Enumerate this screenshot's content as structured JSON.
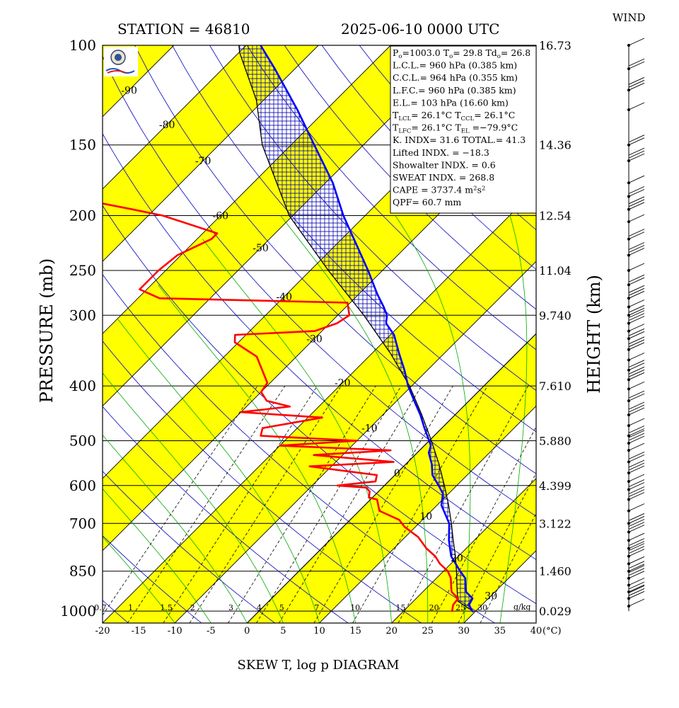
{
  "chart_data": {
    "type": "line",
    "title": "SKEW T, log p DIAGRAM",
    "station_label": "STATION = 46810",
    "datetime_label": "2025-06-10 0000 UTC",
    "ylabel": "PRESSURE (mb)",
    "y2label": "HEIGHT (km)",
    "wind_label": "WIND",
    "x_unit": "(°C)",
    "mixing_unit": "g/kg",
    "xlim": [
      -20,
      40
    ],
    "ylim": [
      1050,
      100
    ],
    "x_ticks": [
      "-20",
      "-15",
      "-10",
      "-5",
      "0",
      "5",
      "10",
      "15",
      "20",
      "25",
      "30",
      "35",
      "40"
    ],
    "pressure_ticks": [
      {
        "p": 100,
        "label": "100",
        "height": "16.73"
      },
      {
        "p": 150,
        "label": "150",
        "height": "14.36"
      },
      {
        "p": 200,
        "label": "200",
        "height": "12.54"
      },
      {
        "p": 250,
        "label": "250",
        "height": "11.04"
      },
      {
        "p": 300,
        "label": "300",
        "height": "9.740"
      },
      {
        "p": 400,
        "label": "400",
        "height": "7.610"
      },
      {
        "p": 500,
        "label": "500",
        "height": "5.880"
      },
      {
        "p": 600,
        "label": "600",
        "height": "4.399"
      },
      {
        "p": 700,
        "label": "700",
        "height": "3.122"
      },
      {
        "p": 850,
        "label": "850",
        "height": "1.460"
      },
      {
        "p": 1000,
        "label": "1000",
        "height": "0.029"
      }
    ],
    "isotherm_labels": [
      {
        "t": -90,
        "p": 120,
        "label": "-90"
      },
      {
        "t": -80,
        "p": 138,
        "label": "-80"
      },
      {
        "t": -70,
        "p": 160,
        "label": "-70"
      },
      {
        "t": -60,
        "p": 200,
        "label": "-60"
      },
      {
        "t": -50,
        "p": 228,
        "label": "-50"
      },
      {
        "t": -40,
        "p": 278,
        "label": "-40"
      },
      {
        "t": -30,
        "p": 330,
        "label": "-30"
      },
      {
        "t": -20,
        "p": 395,
        "label": "-20"
      },
      {
        "t": -10,
        "p": 475,
        "label": "-10"
      },
      {
        "t": 0,
        "p": 570,
        "label": "0"
      },
      {
        "t": 10,
        "p": 680,
        "label": "10"
      },
      {
        "t": 20,
        "p": 805,
        "label": "20"
      },
      {
        "t": 30,
        "p": 940,
        "label": "30"
      }
    ],
    "mixing_ratio_labels": [
      "0.7",
      "1",
      "1.5",
      "2",
      "3",
      "4",
      "5",
      "7",
      "10",
      "15",
      "20",
      "25",
      "30"
    ],
    "mixing_ratio_values": [
      0.7,
      1,
      1.5,
      2,
      3,
      4,
      5,
      7,
      10,
      15,
      20,
      25,
      30
    ],
    "stats": [
      [
        {
          "t": "P"
        },
        {
          "t": "o",
          "sub": true
        },
        {
          "t": "=1003.0 T"
        },
        {
          "t": "o",
          "sub": true
        },
        {
          "t": "= 29.8 Td"
        },
        {
          "t": "o",
          "sub": true
        },
        {
          "t": "= 26.8"
        }
      ],
      [
        {
          "t": "L.C.L.= 960 hPa (0.385 km)"
        }
      ],
      [
        {
          "t": "C.C.L.= 964 hPa (0.355 km)"
        }
      ],
      [
        {
          "t": "L.F.C.= 960 hPa (0.385 km)"
        }
      ],
      [
        {
          "t": "E.L.= 103 hPa (16.60 km)"
        }
      ],
      [
        {
          "t": "T"
        },
        {
          "t": "LCL",
          "sub": true
        },
        {
          "t": "= 26.1°C T"
        },
        {
          "t": "CCL",
          "sub": true
        },
        {
          "t": "= 26.1°C"
        }
      ],
      [
        {
          "t": "T"
        },
        {
          "t": "LFC",
          "sub": true
        },
        {
          "t": "= 26.1°C T"
        },
        {
          "t": "EL",
          "sub": true
        },
        {
          "t": " =−79.9°C"
        }
      ],
      [
        {
          "t": "K. INDX= 31.6 TOTAL.= 41.3"
        }
      ],
      [
        {
          "t": "Lifted INDX. = −18.3"
        }
      ],
      [
        {
          "t": "Showalter INDX. = 0.6"
        }
      ],
      [
        {
          "t": "SWEAT INDX. = 268.8"
        }
      ],
      [
        {
          "t": "CAPE = 3737.4 m"
        },
        {
          "t": "2",
          "sup": true
        },
        {
          "t": "s"
        },
        {
          "t": "2",
          "sup": true
        }
      ],
      [
        {
          "t": "QPF= 60.7 mm"
        }
      ]
    ],
    "series": [
      {
        "name": "temperature",
        "color": "#0000ff",
        "points": [
          [
            1003,
            29.8
          ],
          [
            1000,
            29.5
          ],
          [
            975,
            28.2
          ],
          [
            950,
            27.8
          ],
          [
            925,
            26.0
          ],
          [
            900,
            25.0
          ],
          [
            875,
            24.0
          ],
          [
            850,
            22.3
          ],
          [
            800,
            19.0
          ],
          [
            750,
            16.5
          ],
          [
            700,
            14.2
          ],
          [
            650,
            10.6
          ],
          [
            620,
            9.2
          ],
          [
            600,
            7.5
          ],
          [
            575,
            5.2
          ],
          [
            550,
            3.6
          ],
          [
            525,
            1.6
          ],
          [
            510,
            0.9
          ],
          [
            500,
            0.0
          ],
          [
            475,
            -2.4
          ],
          [
            450,
            -4.8
          ],
          [
            425,
            -7.6
          ],
          [
            400,
            -10.5
          ],
          [
            375,
            -13.2
          ],
          [
            350,
            -16.3
          ],
          [
            325,
            -19.5
          ],
          [
            310,
            -22.2
          ],
          [
            300,
            -23.2
          ],
          [
            290,
            -24.8
          ],
          [
            275,
            -27.5
          ],
          [
            250,
            -32.0
          ],
          [
            225,
            -37.2
          ],
          [
            200,
            -43.0
          ],
          [
            175,
            -49.0
          ],
          [
            150,
            -56.8
          ],
          [
            130,
            -64.0
          ],
          [
            110,
            -72.8
          ],
          [
            100,
            -78.0
          ]
        ]
      },
      {
        "name": "dewpoint",
        "color": "#ff0000",
        "points": [
          [
            1003,
            26.8
          ],
          [
            975,
            26.0
          ],
          [
            950,
            25.8
          ],
          [
            925,
            24.0
          ],
          [
            900,
            23.0
          ],
          [
            875,
            22.0
          ],
          [
            850,
            20.6
          ],
          [
            825,
            18.5
          ],
          [
            800,
            16.8
          ],
          [
            775,
            14.5
          ],
          [
            740,
            11.8
          ],
          [
            710,
            8.5
          ],
          [
            690,
            6.8
          ],
          [
            665,
            2.8
          ],
          [
            635,
            0.9
          ],
          [
            630,
            -0.5
          ],
          [
            615,
            -1.2
          ],
          [
            605,
            -2.2
          ],
          [
            600,
            -6.5
          ],
          [
            590,
            -1.8
          ],
          [
            575,
            -2.5
          ],
          [
            555,
            -13.0
          ],
          [
            545,
            -2.0
          ],
          [
            530,
            -14.0
          ],
          [
            520,
            -4.0
          ],
          [
            510,
            -20.0
          ],
          [
            500,
            -10.0
          ],
          [
            495,
            -17.0
          ],
          [
            490,
            -24.0
          ],
          [
            475,
            -24.8
          ],
          [
            455,
            -18.0
          ],
          [
            445,
            -30.0
          ],
          [
            435,
            -24.0
          ],
          [
            425,
            -28.0
          ],
          [
            410,
            -30.0
          ],
          [
            395,
            -30.4
          ],
          [
            355,
            -35.5
          ],
          [
            335,
            -40.5
          ],
          [
            325,
            -41.5
          ],
          [
            320,
            -31.0
          ],
          [
            310,
            -29.0
          ],
          [
            300,
            -28.4
          ],
          [
            285,
            -30.4
          ],
          [
            280,
            -57.0
          ],
          [
            270,
            -61.0
          ],
          [
            250,
            -61.0
          ],
          [
            235,
            -60.5
          ],
          [
            220,
            -58.0
          ],
          [
            215,
            -58.0
          ],
          [
            200,
            -68.0
          ],
          [
            195,
            -73.0
          ],
          [
            185,
            -84.0
          ],
          [
            170,
            -86.0
          ],
          [
            155,
            -92.0
          ],
          [
            140,
            -95.0
          ],
          [
            120,
            -97.5
          ],
          [
            100,
            -101.0
          ]
        ]
      }
    ],
    "parcel": [
      [
        1003,
        29.8
      ],
      [
        960,
        26.1
      ],
      [
        900,
        23.8
      ],
      [
        850,
        21.8
      ],
      [
        800,
        19.6
      ],
      [
        750,
        17.1
      ],
      [
        700,
        14.5
      ],
      [
        650,
        11.6
      ],
      [
        600,
        8.3
      ],
      [
        550,
        4.6
      ],
      [
        500,
        0.3
      ],
      [
        450,
        -4.6
      ],
      [
        400,
        -10.3
      ],
      [
        350,
        -17.5
      ],
      [
        300,
        -26.4
      ],
      [
        250,
        -37.5
      ],
      [
        200,
        -50.5
      ],
      [
        150,
        -64.0
      ],
      [
        125,
        -71.0
      ],
      [
        103,
        -79.9
      ],
      [
        100,
        -81.0
      ]
    ],
    "isotherms": [
      -130,
      -120,
      -110,
      -100,
      -90,
      -80,
      -70,
      -60,
      -50,
      -40,
      -30,
      -20,
      -10,
      0,
      10,
      20,
      30,
      40
    ],
    "wind_pressures": [
      100,
      110,
      120,
      130,
      150,
      160,
      175,
      185,
      195,
      205,
      220,
      235,
      250,
      265,
      280,
      290,
      300,
      310,
      320,
      330,
      345,
      360,
      375,
      390,
      405,
      425,
      450,
      470,
      490,
      505,
      520,
      545,
      570,
      590,
      610,
      635,
      665,
      700,
      725,
      750,
      775,
      800,
      825,
      850,
      875,
      900,
      925,
      950,
      980
    ],
    "colors": {
      "band": "#ffff00",
      "temperature": "#0000ff",
      "dewpoint": "#ff0000",
      "dry_adiabat": "#0000c0",
      "moist_adiabat": "#00aa00",
      "cape_hatch": "#0000ff",
      "cin_hatch": "#000000"
    }
  }
}
